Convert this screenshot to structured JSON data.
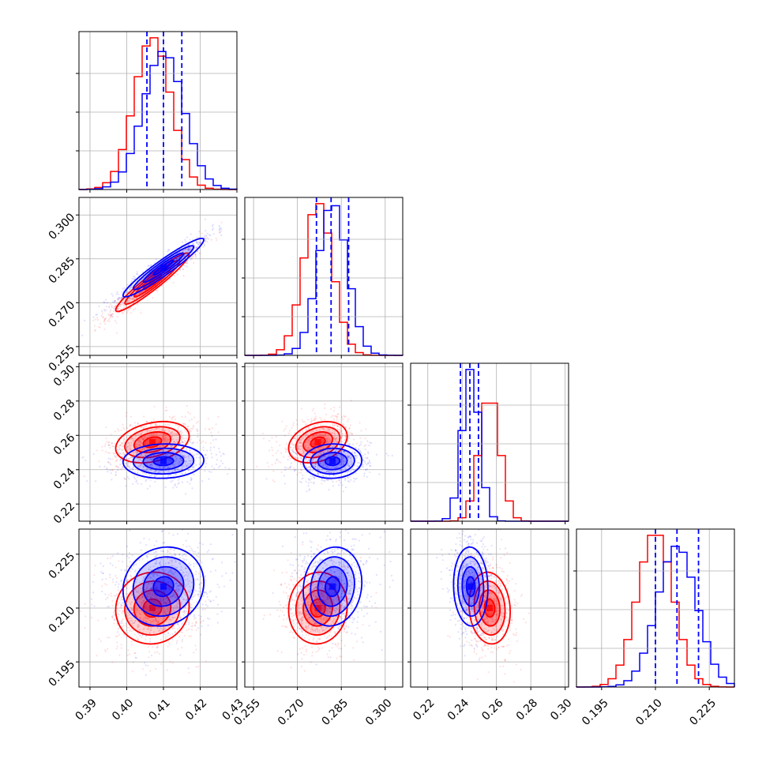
{
  "chart_data": {
    "type": "corner",
    "grid": true,
    "series": [
      {
        "color": "#0000ff",
        "mean": [
          0.41,
          0.282,
          0.245,
          0.216
        ],
        "sd": [
          0.0055,
          0.005,
          0.005,
          0.0055
        ],
        "quantiles": [
          [
            0.4055,
            0.41,
            0.415
          ],
          [
            0.2765,
            0.2815,
            0.2875
          ],
          [
            0.239,
            0.2445,
            0.2495
          ],
          [
            0.21,
            0.216,
            0.222
          ]
        ]
      },
      {
        "color": "#ff0000",
        "mean": [
          0.407,
          0.277,
          0.256,
          0.21
        ],
        "sd": [
          0.005,
          0.005,
          0.006,
          0.005
        ],
        "quantiles": []
      }
    ],
    "correlations": {
      "blue": [
        [
          1,
          0.95,
          0.05,
          0.1
        ],
        [
          0.95,
          1,
          0.05,
          0.1
        ],
        [
          0.05,
          0.05,
          1,
          -0.05
        ],
        [
          0.1,
          0.1,
          -0.05,
          1
        ]
      ],
      "red": [
        [
          1,
          0.95,
          0.3,
          0.05
        ],
        [
          0.95,
          1,
          0.3,
          0.05
        ],
        [
          0.3,
          0.3,
          1,
          -0.1
        ],
        [
          0.05,
          0.05,
          -0.1,
          1
        ]
      ]
    },
    "axes": [
      {
        "range": [
          0.387,
          0.43
        ],
        "ticks": [
          0.39,
          0.4,
          0.41,
          0.42,
          0.43
        ],
        "tick_labels": [
          "0.39",
          "0.40",
          "0.41",
          "0.42",
          "0.43"
        ]
      },
      {
        "range": [
          0.252,
          0.306
        ],
        "ticks": [
          0.255,
          0.27,
          0.285,
          0.3
        ],
        "tick_labels": [
          "0.255",
          "0.270",
          "0.285",
          "0.300"
        ]
      },
      {
        "range": [
          0.21,
          0.302
        ],
        "ticks": [
          0.22,
          0.24,
          0.26,
          0.28,
          0.3
        ],
        "tick_labels": [
          "0.22",
          "0.24",
          "0.26",
          "0.28",
          "0.30"
        ]
      },
      {
        "range": [
          0.188,
          0.232
        ],
        "ticks": [
          0.195,
          0.21,
          0.225
        ],
        "tick_labels": [
          "0.195",
          "0.210",
          "0.225"
        ]
      }
    ]
  }
}
